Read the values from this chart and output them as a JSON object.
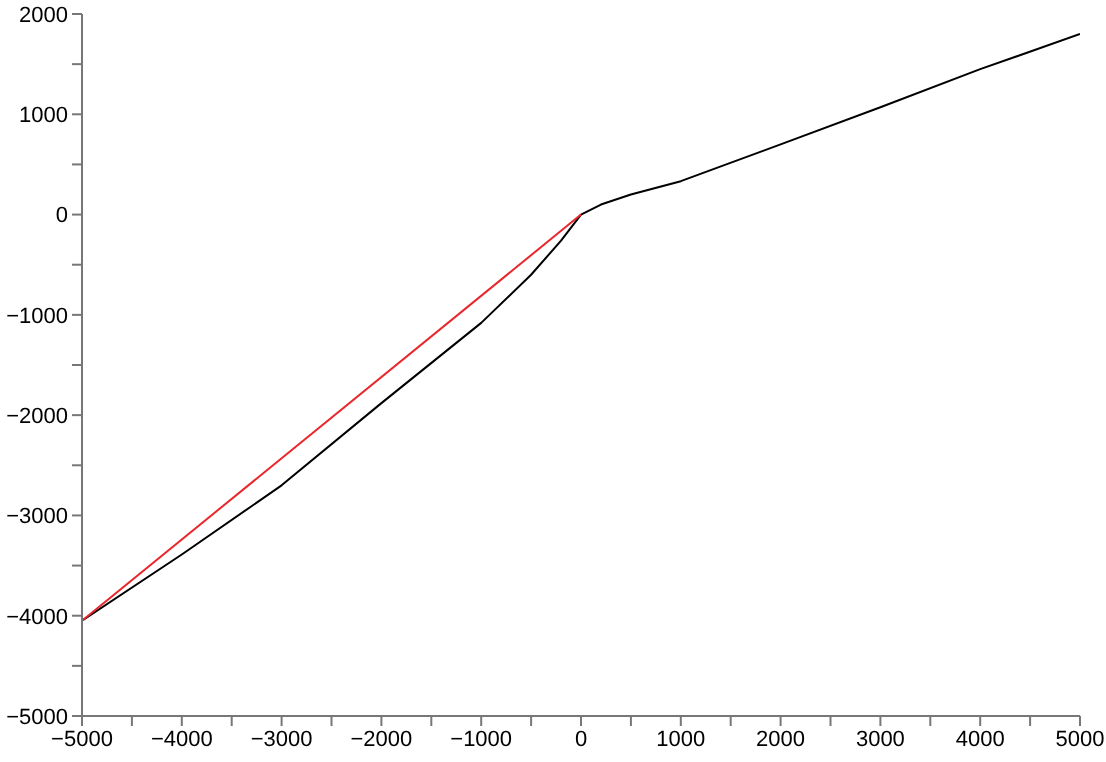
{
  "chart_data": {
    "type": "line",
    "series": [
      {
        "color": "#000000",
        "x": [
          -5000,
          -4000,
          -3000,
          -2000,
          -1000,
          -500,
          -200,
          0,
          200,
          500,
          1000,
          2000,
          3000,
          4000,
          5000
        ],
        "values": [
          -4050,
          -3390,
          -2700,
          -1880,
          -1080,
          -600,
          -260,
          0,
          100,
          200,
          333,
          700,
          1070,
          1450,
          1800
        ]
      },
      {
        "color": "#e8262b",
        "x": [
          -5000,
          0
        ],
        "values": [
          -4050,
          0
        ]
      }
    ],
    "xlim": [
      -5000,
      5000
    ],
    "xticks": [
      {
        "value": -5000,
        "label": "−5000"
      },
      {
        "value": -4500,
        "label": null
      },
      {
        "value": -4000,
        "label": "−4000"
      },
      {
        "value": -3500,
        "label": null
      },
      {
        "value": -3000,
        "label": "−3000"
      },
      {
        "value": -2500,
        "label": null
      },
      {
        "value": -2000,
        "label": "−2000"
      },
      {
        "value": -1500,
        "label": null
      },
      {
        "value": -1000,
        "label": "−1000"
      },
      {
        "value": -500,
        "label": null
      },
      0,
      {
        "value": 500,
        "label": null
      },
      1000,
      {
        "value": 1500,
        "label": null
      },
      2000,
      {
        "value": 2500,
        "label": null
      },
      3000,
      {
        "value": 3500,
        "label": null
      },
      4000,
      {
        "value": 4500,
        "label": null
      },
      5000
    ],
    "ylim": [
      -5000,
      2000
    ],
    "yticks": [
      {
        "value": -5000,
        "label": "−5000"
      },
      {
        "value": -4500,
        "label": null
      },
      {
        "value": -4000,
        "label": "−4000"
      },
      {
        "value": -3500,
        "label": null
      },
      {
        "value": -3000,
        "label": "−3000"
      },
      {
        "value": -2500,
        "label": null
      },
      {
        "value": -2000,
        "label": "−2000"
      },
      {
        "value": -1500,
        "label": null
      },
      {
        "value": -1000,
        "label": "−1000"
      },
      {
        "value": -500,
        "label": null
      },
      0,
      {
        "value": 500,
        "label": null
      },
      1000,
      {
        "value": 1500,
        "label": null
      },
      2000
    ],
    "grid": false,
    "legend": false,
    "marker": "none",
    "line_style": "solid"
  }
}
